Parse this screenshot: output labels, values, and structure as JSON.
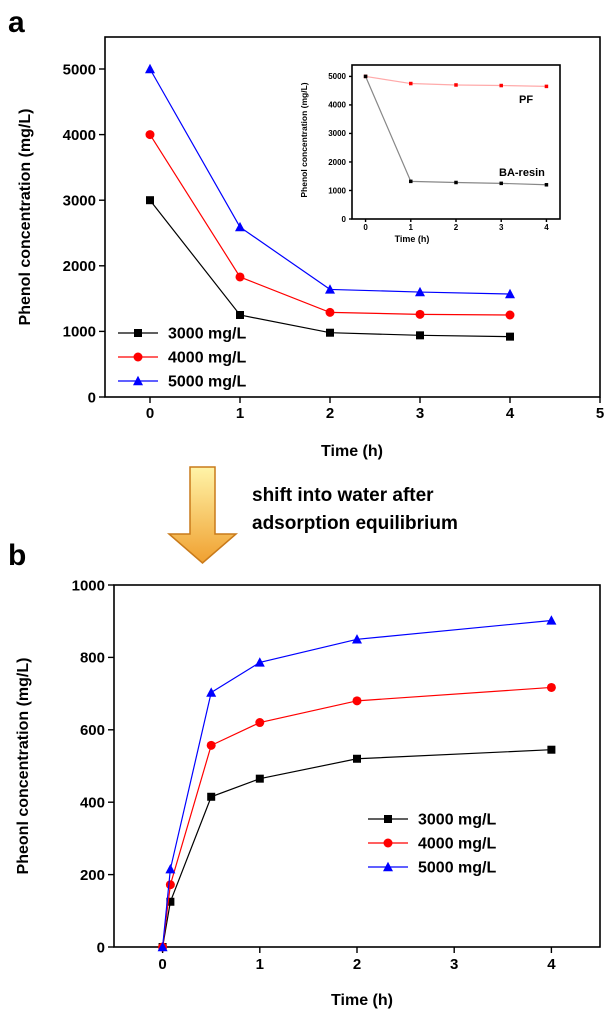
{
  "panel_letters": [
    "a",
    "b"
  ],
  "arrow": {
    "caption_lines": [
      "shift into water after",
      "adsorption equilibrium"
    ],
    "fill_top": "#fff4a8",
    "fill_bottom": "#f0a030",
    "stroke": "#c97a1a"
  },
  "colors": {
    "black": "#000000",
    "red": "#ff0000",
    "blue": "#0000ff",
    "inset_gray": "#888888"
  },
  "chart_data": [
    {
      "panel": "a",
      "type": "line",
      "xlabel": "Time (h)",
      "ylabel": "Phenol concentration (mg/L)",
      "xlim": [
        -0.5,
        5
      ],
      "ylim": [
        0,
        5000
      ],
      "xticks": [
        0,
        1,
        2,
        3,
        4,
        5
      ],
      "yticks": [
        0,
        1000,
        2000,
        3000,
        4000,
        5000
      ],
      "x": [
        0,
        1,
        2,
        3,
        4
      ],
      "series": [
        {
          "name": "3000 mg/L",
          "color": "#000000",
          "marker": "square",
          "values": [
            3000,
            1250,
            980,
            940,
            920
          ]
        },
        {
          "name": "4000 mg/L",
          "color": "#ff0000",
          "marker": "circle",
          "values": [
            4000,
            1830,
            1290,
            1260,
            1250
          ]
        },
        {
          "name": "5000 mg/L",
          "color": "#0000ff",
          "marker": "triangle",
          "values": [
            5000,
            2590,
            1640,
            1600,
            1570
          ]
        }
      ],
      "legend_position": "bottom-left",
      "inset": {
        "type": "line",
        "xlabel": "Time (h)",
        "ylabel": "Phenol concentration (mg/L)",
        "xlim": [
          -0.3,
          4.3
        ],
        "ylim": [
          0,
          5400
        ],
        "xticks": [
          0,
          1,
          2,
          3,
          4
        ],
        "yticks": [
          0,
          1000,
          2000,
          3000,
          4000,
          5000
        ],
        "x": [
          0,
          1,
          2,
          3,
          4
        ],
        "series": [
          {
            "name": "PF",
            "color": "#ff0000",
            "line_color": "#ffaaaa",
            "values": [
              5000,
              4750,
              4700,
              4680,
              4650
            ]
          },
          {
            "name": "BA-resin",
            "color": "#000000",
            "line_color": "#888888",
            "values": [
              5000,
              1320,
              1280,
              1250,
              1200
            ]
          }
        ]
      }
    },
    {
      "panel": "b",
      "type": "line",
      "xlabel": "Time (h)",
      "ylabel": "Pheonl concentration (mg/L)",
      "xlim": [
        -0.5,
        4.5
      ],
      "ylim": [
        0,
        1000
      ],
      "xticks": [
        0,
        1,
        2,
        3,
        4
      ],
      "yticks": [
        0,
        200,
        400,
        600,
        800,
        1000
      ],
      "x": [
        0,
        0.08,
        0.5,
        1,
        2,
        4
      ],
      "series": [
        {
          "name": "3000 mg/L",
          "color": "#000000",
          "marker": "square",
          "values": [
            0,
            125,
            415,
            465,
            520,
            545
          ]
        },
        {
          "name": "4000 mg/L",
          "color": "#ff0000",
          "marker": "circle",
          "values": [
            0,
            172,
            557,
            620,
            680,
            717
          ]
        },
        {
          "name": "5000 mg/L",
          "color": "#0000ff",
          "marker": "triangle",
          "values": [
            0,
            215,
            703,
            786,
            850,
            902
          ]
        }
      ],
      "legend_position": "bottom-right"
    }
  ]
}
